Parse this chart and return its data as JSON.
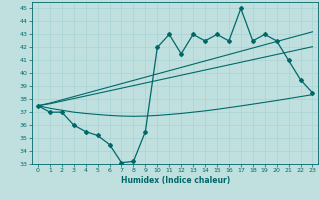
{
  "xlabel": "Humidex (Indice chaleur)",
  "bg_color": "#c0e0e0",
  "line_color": "#006868",
  "grid_color": "#a8d4d4",
  "ylim": [
    33,
    45.5
  ],
  "xlim": [
    -0.5,
    23.5
  ],
  "yticks": [
    33,
    34,
    35,
    36,
    37,
    38,
    39,
    40,
    41,
    42,
    43,
    44,
    45
  ],
  "xticks": [
    0,
    1,
    2,
    3,
    4,
    5,
    6,
    7,
    8,
    9,
    10,
    11,
    12,
    13,
    14,
    15,
    16,
    17,
    18,
    19,
    20,
    21,
    22,
    23
  ],
  "main_line": [
    37.5,
    37.0,
    37.0,
    36.0,
    35.5,
    35.2,
    34.5,
    33.1,
    33.2,
    35.5,
    42.0,
    43.0,
    41.5,
    43.0,
    42.5,
    43.0,
    42.5,
    45.0,
    42.5,
    43.0,
    42.5,
    41.0,
    39.5,
    38.5
  ],
  "trend_upper1": [
    37.5,
    37.7,
    37.95,
    38.2,
    38.45,
    38.7,
    38.95,
    39.2,
    39.45,
    39.7,
    39.95,
    40.2,
    40.45,
    40.7,
    40.95,
    41.2,
    41.45,
    41.7,
    41.95,
    42.2,
    42.45,
    42.7,
    42.95,
    43.2
  ],
  "trend_upper2": [
    37.5,
    37.65,
    37.85,
    38.05,
    38.25,
    38.45,
    38.65,
    38.85,
    39.05,
    39.25,
    39.45,
    39.65,
    39.85,
    40.05,
    40.25,
    40.45,
    40.65,
    40.85,
    41.05,
    41.25,
    41.45,
    41.65,
    41.85,
    42.05
  ],
  "trend_lower": [
    37.5,
    37.3,
    37.15,
    37.0,
    36.9,
    36.82,
    36.75,
    36.7,
    36.68,
    36.7,
    36.75,
    36.82,
    36.9,
    37.0,
    37.1,
    37.22,
    37.35,
    37.48,
    37.62,
    37.76,
    37.9,
    38.05,
    38.2,
    38.35
  ]
}
